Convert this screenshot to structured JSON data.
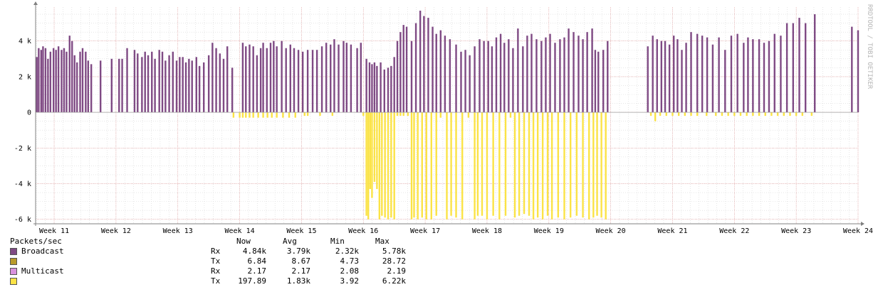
{
  "watermark": "RRDTOOL / TOBI OETIKER",
  "colors": {
    "rx": "#7f4a84",
    "tx": "#fbe346",
    "background": "#ffffff",
    "grid": "#d7d7d7",
    "axis": "#808080"
  },
  "legend": {
    "title": "Packets/sec",
    "headers": [
      "Now",
      "Avg",
      "Min",
      "Max"
    ],
    "rows": [
      {
        "swatch": "#7f4a84",
        "name": "Broadcast",
        "dir": "Rx",
        "now": "4.84k",
        "avg": "3.79k",
        "min": "2.32k",
        "max": "5.78k"
      },
      {
        "swatch": "#b89a2a",
        "name": "",
        "dir": "Tx",
        "now": "6.84",
        "avg": "8.67",
        "min": "4.73",
        "max": "28.72"
      },
      {
        "swatch": "#d891de",
        "name": "Multicast",
        "dir": "Rx",
        "now": "2.17",
        "avg": "2.17",
        "min": "2.08",
        "max": "2.19"
      },
      {
        "swatch": "#fbe346",
        "name": "",
        "dir": "Tx",
        "now": "197.89",
        "avg": "1.83k",
        "min": "3.92",
        "max": "6.22k"
      }
    ]
  },
  "chart_data": {
    "type": "area",
    "ylabel": "",
    "xlabel": "",
    "ylim": [
      -6250,
      5900
    ],
    "yticks": [
      {
        "v": 4000,
        "label": "4 k"
      },
      {
        "v": 2000,
        "label": "2 k"
      },
      {
        "v": 0,
        "label": "0"
      },
      {
        "v": -2000,
        "label": "-2 k"
      },
      {
        "v": -4000,
        "label": "-4 k"
      },
      {
        "v": -6000,
        "label": "-6 k"
      }
    ],
    "xlim": [
      10.7,
      24
    ],
    "xticks": [
      {
        "v": 11,
        "label": "Week 11"
      },
      {
        "v": 12,
        "label": "Week 12"
      },
      {
        "v": 13,
        "label": "Week 13"
      },
      {
        "v": 14,
        "label": "Week 14"
      },
      {
        "v": 15,
        "label": "Week 15"
      },
      {
        "v": 16,
        "label": "Week 16"
      },
      {
        "v": 17,
        "label": "Week 17"
      },
      {
        "v": 18,
        "label": "Week 18"
      },
      {
        "v": 19,
        "label": "Week 19"
      },
      {
        "v": 20,
        "label": "Week 20"
      },
      {
        "v": 21,
        "label": "Week 21"
      },
      {
        "v": 22,
        "label": "Week 22"
      },
      {
        "v": 23,
        "label": "Week 23"
      },
      {
        "v": 24,
        "label": "Week 24"
      }
    ],
    "series": [
      {
        "name": "Rx",
        "color": "#7f4a84",
        "spikes": [
          [
            10.72,
            3100
          ],
          [
            10.75,
            3600
          ],
          [
            10.79,
            3500
          ],
          [
            10.82,
            3700
          ],
          [
            10.86,
            3600
          ],
          [
            10.9,
            3000
          ],
          [
            10.94,
            3400
          ],
          [
            10.99,
            3600
          ],
          [
            11.03,
            3500
          ],
          [
            11.07,
            3700
          ],
          [
            11.12,
            3500
          ],
          [
            11.16,
            3600
          ],
          [
            11.2,
            3400
          ],
          [
            11.25,
            4300
          ],
          [
            11.29,
            4000
          ],
          [
            11.33,
            3200
          ],
          [
            11.37,
            2800
          ],
          [
            11.42,
            3400
          ],
          [
            11.46,
            3600
          ],
          [
            11.51,
            3400
          ],
          [
            11.55,
            2900
          ],
          [
            11.6,
            2700
          ],
          [
            11.75,
            2900
          ],
          [
            11.93,
            3000
          ],
          [
            12.05,
            3000
          ],
          [
            12.1,
            3000
          ],
          [
            12.18,
            3600
          ],
          [
            12.3,
            3500
          ],
          [
            12.35,
            3300
          ],
          [
            12.42,
            3100
          ],
          [
            12.47,
            3400
          ],
          [
            12.52,
            3200
          ],
          [
            12.58,
            3400
          ],
          [
            12.63,
            3000
          ],
          [
            12.7,
            3500
          ],
          [
            12.75,
            3400
          ],
          [
            12.8,
            2900
          ],
          [
            12.86,
            3200
          ],
          [
            12.92,
            3400
          ],
          [
            12.98,
            2900
          ],
          [
            13.03,
            3100
          ],
          [
            13.08,
            3100
          ],
          [
            13.13,
            2800
          ],
          [
            13.18,
            3000
          ],
          [
            13.23,
            2900
          ],
          [
            13.3,
            3100
          ],
          [
            13.35,
            2600
          ],
          [
            13.42,
            2800
          ],
          [
            13.5,
            3200
          ],
          [
            13.56,
            3900
          ],
          [
            13.62,
            3600
          ],
          [
            13.68,
            3300
          ],
          [
            13.74,
            3000
          ],
          [
            13.8,
            3700
          ],
          [
            13.88,
            2500
          ],
          [
            14.05,
            3900
          ],
          [
            14.1,
            3700
          ],
          [
            14.16,
            3800
          ],
          [
            14.22,
            3700
          ],
          [
            14.28,
            3200
          ],
          [
            14.34,
            3600
          ],
          [
            14.38,
            3900
          ],
          [
            14.44,
            3600
          ],
          [
            14.5,
            3900
          ],
          [
            14.55,
            4000
          ],
          [
            14.6,
            3700
          ],
          [
            14.68,
            4000
          ],
          [
            14.75,
            3600
          ],
          [
            14.82,
            3800
          ],
          [
            14.88,
            3600
          ],
          [
            14.95,
            3500
          ],
          [
            15.02,
            3400
          ],
          [
            15.1,
            3500
          ],
          [
            15.18,
            3500
          ],
          [
            15.25,
            3500
          ],
          [
            15.33,
            3700
          ],
          [
            15.4,
            3900
          ],
          [
            15.47,
            3800
          ],
          [
            15.53,
            4100
          ],
          [
            15.6,
            3800
          ],
          [
            15.68,
            4000
          ],
          [
            15.73,
            3900
          ],
          [
            15.8,
            3800
          ],
          [
            15.9,
            3600
          ],
          [
            15.96,
            3900
          ],
          [
            16.05,
            3000
          ],
          [
            16.1,
            2800
          ],
          [
            16.14,
            2700
          ],
          [
            16.18,
            2800
          ],
          [
            16.22,
            2600
          ],
          [
            16.28,
            2800
          ],
          [
            16.34,
            2400
          ],
          [
            16.4,
            2500
          ],
          [
            16.45,
            2600
          ],
          [
            16.5,
            3100
          ],
          [
            16.55,
            4000
          ],
          [
            16.6,
            4500
          ],
          [
            16.65,
            4900
          ],
          [
            16.7,
            4800
          ],
          [
            16.78,
            4000
          ],
          [
            16.85,
            5000
          ],
          [
            16.92,
            5700
          ],
          [
            16.98,
            5400
          ],
          [
            17.05,
            5300
          ],
          [
            17.12,
            4800
          ],
          [
            17.18,
            4400
          ],
          [
            17.25,
            4600
          ],
          [
            17.32,
            4300
          ],
          [
            17.4,
            4100
          ],
          [
            17.5,
            3800
          ],
          [
            17.58,
            3400
          ],
          [
            17.65,
            3500
          ],
          [
            17.72,
            3200
          ],
          [
            17.8,
            3700
          ],
          [
            17.88,
            4100
          ],
          [
            17.95,
            4000
          ],
          [
            18.02,
            4000
          ],
          [
            18.08,
            3700
          ],
          [
            18.15,
            4200
          ],
          [
            18.22,
            4400
          ],
          [
            18.28,
            3900
          ],
          [
            18.35,
            4100
          ],
          [
            18.42,
            3600
          ],
          [
            18.5,
            4700
          ],
          [
            18.58,
            3700
          ],
          [
            18.65,
            4300
          ],
          [
            18.72,
            4400
          ],
          [
            18.8,
            4100
          ],
          [
            18.88,
            4000
          ],
          [
            18.95,
            4200
          ],
          [
            19.02,
            4400
          ],
          [
            19.1,
            3900
          ],
          [
            19.18,
            4100
          ],
          [
            19.25,
            4200
          ],
          [
            19.32,
            4700
          ],
          [
            19.4,
            4500
          ],
          [
            19.48,
            4300
          ],
          [
            19.55,
            4100
          ],
          [
            19.62,
            4500
          ],
          [
            19.7,
            4700
          ],
          [
            19.75,
            3500
          ],
          [
            19.8,
            3400
          ],
          [
            19.88,
            3500
          ],
          [
            19.95,
            4000
          ],
          [
            20.6,
            3700
          ],
          [
            20.68,
            4300
          ],
          [
            20.75,
            4100
          ],
          [
            20.82,
            4000
          ],
          [
            20.88,
            4000
          ],
          [
            20.95,
            3800
          ],
          [
            21.02,
            4300
          ],
          [
            21.08,
            4100
          ],
          [
            21.15,
            3500
          ],
          [
            21.22,
            3900
          ],
          [
            21.3,
            4500
          ],
          [
            21.4,
            4400
          ],
          [
            21.48,
            4300
          ],
          [
            21.56,
            4200
          ],
          [
            21.65,
            3800
          ],
          [
            21.75,
            4200
          ],
          [
            21.85,
            3500
          ],
          [
            21.95,
            4300
          ],
          [
            22.05,
            4400
          ],
          [
            22.15,
            3900
          ],
          [
            22.22,
            4200
          ],
          [
            22.3,
            4100
          ],
          [
            22.4,
            4100
          ],
          [
            22.48,
            3900
          ],
          [
            22.56,
            4000
          ],
          [
            22.65,
            4400
          ],
          [
            22.75,
            4300
          ],
          [
            22.85,
            5000
          ],
          [
            22.95,
            5000
          ],
          [
            23.05,
            5300
          ],
          [
            23.15,
            5000
          ],
          [
            23.3,
            5500
          ],
          [
            23.9,
            4800
          ],
          [
            24.0,
            4600
          ]
        ]
      },
      {
        "name": "Tx",
        "color": "#fbe346",
        "spikes": [
          [
            13.9,
            -300
          ],
          [
            14.0,
            -300
          ],
          [
            14.05,
            -300
          ],
          [
            14.1,
            -300
          ],
          [
            14.16,
            -300
          ],
          [
            14.22,
            -300
          ],
          [
            14.3,
            -300
          ],
          [
            14.38,
            -300
          ],
          [
            14.45,
            -300
          ],
          [
            14.52,
            -300
          ],
          [
            14.6,
            -300
          ],
          [
            14.7,
            -300
          ],
          [
            14.8,
            -300
          ],
          [
            14.9,
            -300
          ],
          [
            15.05,
            -200
          ],
          [
            15.1,
            -200
          ],
          [
            15.3,
            -200
          ],
          [
            15.5,
            -200
          ],
          [
            16.0,
            -200
          ],
          [
            16.05,
            -5800
          ],
          [
            16.08,
            -6000
          ],
          [
            16.11,
            -4300
          ],
          [
            16.14,
            -4800
          ],
          [
            16.18,
            -3900
          ],
          [
            16.22,
            -4300
          ],
          [
            16.26,
            -6000
          ],
          [
            16.3,
            -5800
          ],
          [
            16.35,
            -5900
          ],
          [
            16.4,
            -6000
          ],
          [
            16.45,
            -5900
          ],
          [
            16.5,
            -6000
          ],
          [
            16.55,
            -200
          ],
          [
            16.6,
            -200
          ],
          [
            16.65,
            -200
          ],
          [
            16.72,
            -200
          ],
          [
            16.78,
            -6000
          ],
          [
            16.82,
            -5900
          ],
          [
            16.88,
            -6000
          ],
          [
            16.95,
            -5900
          ],
          [
            17.02,
            -6000
          ],
          [
            17.1,
            -6000
          ],
          [
            17.18,
            -5800
          ],
          [
            17.25,
            -300
          ],
          [
            17.35,
            -6000
          ],
          [
            17.42,
            -5800
          ],
          [
            17.5,
            -5900
          ],
          [
            17.6,
            -6000
          ],
          [
            17.7,
            -300
          ],
          [
            17.8,
            -6000
          ],
          [
            17.85,
            -5800
          ],
          [
            17.92,
            -5800
          ],
          [
            18.0,
            -6000
          ],
          [
            18.1,
            -5800
          ],
          [
            18.2,
            -6000
          ],
          [
            18.3,
            -5800
          ],
          [
            18.38,
            -300
          ],
          [
            18.45,
            -5900
          ],
          [
            18.52,
            -5800
          ],
          [
            18.6,
            -5700
          ],
          [
            18.68,
            -5800
          ],
          [
            18.75,
            -6000
          ],
          [
            18.82,
            -5900
          ],
          [
            18.9,
            -6000
          ],
          [
            18.98,
            -5800
          ],
          [
            19.05,
            -6000
          ],
          [
            19.15,
            -5900
          ],
          [
            19.25,
            -6000
          ],
          [
            19.35,
            -5900
          ],
          [
            19.45,
            -5800
          ],
          [
            19.55,
            -5900
          ],
          [
            19.65,
            -6000
          ],
          [
            19.72,
            -5900
          ],
          [
            19.78,
            -5800
          ],
          [
            19.85,
            -5900
          ],
          [
            19.92,
            -6000
          ],
          [
            20.65,
            -200
          ],
          [
            20.72,
            -500
          ],
          [
            20.8,
            -200
          ],
          [
            20.9,
            -200
          ],
          [
            21.0,
            -200
          ],
          [
            21.1,
            -200
          ],
          [
            21.2,
            -200
          ],
          [
            21.3,
            -200
          ],
          [
            21.4,
            -200
          ],
          [
            21.55,
            -200
          ],
          [
            21.7,
            -200
          ],
          [
            21.8,
            -200
          ],
          [
            21.9,
            -200
          ],
          [
            22.0,
            -200
          ],
          [
            22.1,
            -200
          ],
          [
            22.2,
            -200
          ],
          [
            22.3,
            -200
          ],
          [
            22.4,
            -200
          ],
          [
            22.5,
            -200
          ],
          [
            22.6,
            -200
          ],
          [
            22.7,
            -200
          ],
          [
            22.8,
            -200
          ],
          [
            22.9,
            -200
          ],
          [
            23.0,
            -200
          ],
          [
            23.1,
            -200
          ],
          [
            23.25,
            -200
          ]
        ]
      }
    ]
  }
}
